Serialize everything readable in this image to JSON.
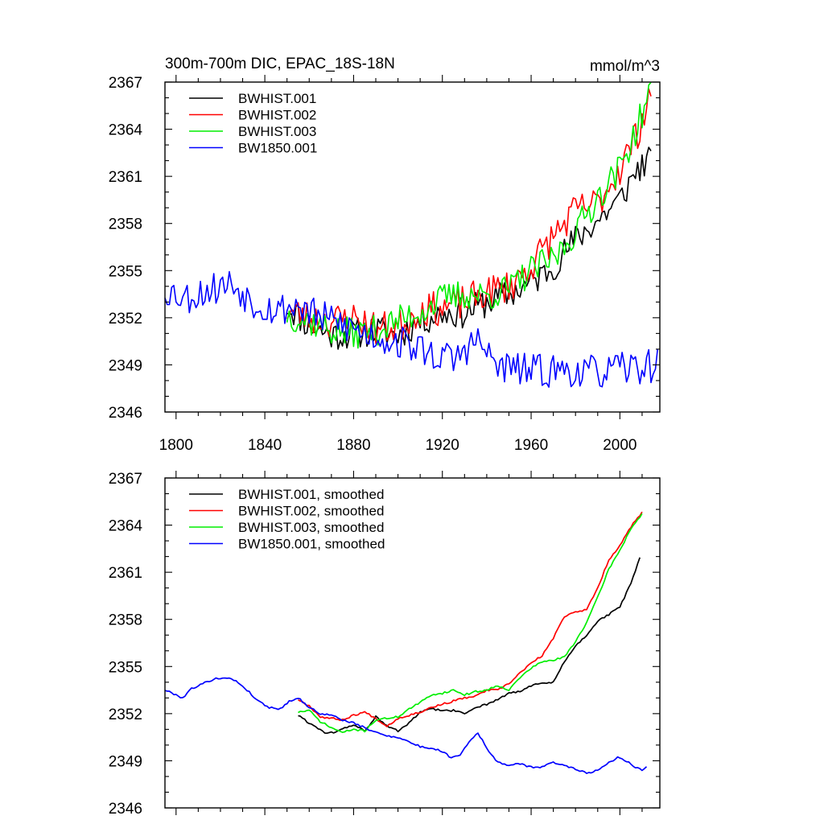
{
  "chart_data": [
    {
      "type": "line",
      "title": "300m-700m DIC, EPAC_18S-18N",
      "units": "mmol/m^3",
      "xlim": [
        1795,
        2018
      ],
      "ylim": [
        2346,
        2367
      ],
      "yticks": [
        2346,
        2349,
        2352,
        2355,
        2358,
        2361,
        2364,
        2367
      ],
      "xticks": [
        1800,
        1840,
        1880,
        1920,
        1960,
        2000
      ],
      "show_x_tick_labels": true,
      "legend_position": "top-left",
      "series": [
        {
          "name": "BWHIST.001",
          "color": "#000000",
          "x_start": 1850,
          "x_end": 2014,
          "anchors": [
            [
              1850,
              2352.8
            ],
            [
              1860,
              2351.5
            ],
            [
              1870,
              2350.9
            ],
            [
              1880,
              2351.0
            ],
            [
              1890,
              2351.2
            ],
            [
              1900,
              2350.9
            ],
            [
              1910,
              2351.8
            ],
            [
              1920,
              2352.3
            ],
            [
              1930,
              2352.3
            ],
            [
              1940,
              2353.0
            ],
            [
              1950,
              2353.5
            ],
            [
              1960,
              2354.2
            ],
            [
              1970,
              2355.3
            ],
            [
              1980,
              2357.0
            ],
            [
              1990,
              2358.2
            ],
            [
              2000,
              2359.5
            ],
            [
              2008,
              2361.5
            ],
            [
              2014,
              2362.0
            ]
          ],
          "noise": 1.0,
          "seed": 11
        },
        {
          "name": "BWHIST.002",
          "color": "#ff0000",
          "x_start": 1850,
          "x_end": 2014,
          "anchors": [
            [
              1850,
              2352.5
            ],
            [
              1860,
              2352.0
            ],
            [
              1870,
              2351.8
            ],
            [
              1880,
              2352.0
            ],
            [
              1890,
              2351.3
            ],
            [
              1900,
              2351.4
            ],
            [
              1910,
              2352.5
            ],
            [
              1920,
              2352.6
            ],
            [
              1930,
              2353.0
            ],
            [
              1940,
              2353.6
            ],
            [
              1950,
              2354.0
            ],
            [
              1960,
              2355.3
            ],
            [
              1970,
              2357.2
            ],
            [
              1980,
              2358.8
            ],
            [
              1990,
              2359.3
            ],
            [
              2000,
              2361.5
            ],
            [
              2008,
              2363.8
            ],
            [
              2014,
              2366.5
            ]
          ],
          "noise": 1.1,
          "seed": 23
        },
        {
          "name": "BWHIST.003",
          "color": "#00ee00",
          "x_start": 1850,
          "x_end": 2014,
          "anchors": [
            [
              1850,
              2352.2
            ],
            [
              1860,
              2351.8
            ],
            [
              1870,
              2351.2
            ],
            [
              1880,
              2351.0
            ],
            [
              1890,
              2351.2
            ],
            [
              1900,
              2351.8
            ],
            [
              1910,
              2352.4
            ],
            [
              1920,
              2353.2
            ],
            [
              1930,
              2353.5
            ],
            [
              1940,
              2353.4
            ],
            [
              1950,
              2353.8
            ],
            [
              1960,
              2355.0
            ],
            [
              1970,
              2355.7
            ],
            [
              1980,
              2357.5
            ],
            [
              1990,
              2359.7
            ],
            [
              2000,
              2361.5
            ],
            [
              2008,
              2364.2
            ],
            [
              2014,
              2366.6
            ]
          ],
          "noise": 1.0,
          "seed": 37
        },
        {
          "name": "BW1850.001",
          "color": "#0000ff",
          "x_start": 1795,
          "x_end": 2017,
          "anchors": [
            [
              1795,
              2353.8
            ],
            [
              1805,
              2353.3
            ],
            [
              1815,
              2353.8
            ],
            [
              1825,
              2354.2
            ],
            [
              1835,
              2353.0
            ],
            [
              1845,
              2352.5
            ],
            [
              1855,
              2352.8
            ],
            [
              1865,
              2352.0
            ],
            [
              1875,
              2351.6
            ],
            [
              1885,
              2351.0
            ],
            [
              1895,
              2350.6
            ],
            [
              1905,
              2350.3
            ],
            [
              1915,
              2349.7
            ],
            [
              1925,
              2349.3
            ],
            [
              1935,
              2350.6
            ],
            [
              1945,
              2348.9
            ],
            [
              1955,
              2348.7
            ],
            [
              1965,
              2348.6
            ],
            [
              1975,
              2348.7
            ],
            [
              1985,
              2348.5
            ],
            [
              1995,
              2348.6
            ],
            [
              2005,
              2348.8
            ],
            [
              2017,
              2349.0
            ]
          ],
          "noise": 1.1,
          "seed": 53
        }
      ]
    },
    {
      "type": "line",
      "title": "",
      "units": "",
      "xlim": [
        1795,
        2018
      ],
      "ylim": [
        2346,
        2367
      ],
      "yticks": [
        2346,
        2349,
        2352,
        2355,
        2358,
        2361,
        2364,
        2367
      ],
      "xticks": [
        1800,
        1840,
        1880,
        1920,
        1960,
        2000
      ],
      "show_x_tick_labels": false,
      "legend_position": "top-left",
      "series": [
        {
          "name": "BWHIST.001, smoothed",
          "color": "#000000",
          "x_start": 1855,
          "x_end": 2009,
          "anchors": [
            [
              1855,
              2351.9
            ],
            [
              1860,
              2351.4
            ],
            [
              1865,
              2351.0
            ],
            [
              1868,
              2350.7
            ],
            [
              1873,
              2350.9
            ],
            [
              1880,
              2351.3
            ],
            [
              1885,
              2350.9
            ],
            [
              1890,
              2351.8
            ],
            [
              1895,
              2351.2
            ],
            [
              1900,
              2350.9
            ],
            [
              1905,
              2351.4
            ],
            [
              1910,
              2352.1
            ],
            [
              1915,
              2352.3
            ],
            [
              1920,
              2352.2
            ],
            [
              1925,
              2352.2
            ],
            [
              1930,
              2352.0
            ],
            [
              1935,
              2352.4
            ],
            [
              1940,
              2352.6
            ],
            [
              1945,
              2352.9
            ],
            [
              1950,
              2353.3
            ],
            [
              1955,
              2353.4
            ],
            [
              1960,
              2353.8
            ],
            [
              1965,
              2353.9
            ],
            [
              1970,
              2354.0
            ],
            [
              1975,
              2355.3
            ],
            [
              1980,
              2356.3
            ],
            [
              1985,
              2357.0
            ],
            [
              1990,
              2357.9
            ],
            [
              1995,
              2358.3
            ],
            [
              2000,
              2358.8
            ],
            [
              2005,
              2360.3
            ],
            [
              2009,
              2361.9
            ]
          ],
          "noise": 0.06,
          "seed": 61
        },
        {
          "name": "BWHIST.002, smoothed",
          "color": "#ff0000",
          "x_start": 1855,
          "x_end": 2010,
          "anchors": [
            [
              1855,
              2352.9
            ],
            [
              1860,
              2352.5
            ],
            [
              1865,
              2351.8
            ],
            [
              1870,
              2351.7
            ],
            [
              1875,
              2351.6
            ],
            [
              1880,
              2351.9
            ],
            [
              1885,
              2352.1
            ],
            [
              1890,
              2351.7
            ],
            [
              1895,
              2351.2
            ],
            [
              1900,
              2351.7
            ],
            [
              1905,
              2351.9
            ],
            [
              1910,
              2352.1
            ],
            [
              1915,
              2352.4
            ],
            [
              1920,
              2352.6
            ],
            [
              1925,
              2352.8
            ],
            [
              1930,
              2353.0
            ],
            [
              1935,
              2353.1
            ],
            [
              1940,
              2353.5
            ],
            [
              1945,
              2353.5
            ],
            [
              1950,
              2353.9
            ],
            [
              1955,
              2354.6
            ],
            [
              1960,
              2355.2
            ],
            [
              1965,
              2355.7
            ],
            [
              1970,
              2356.8
            ],
            [
              1975,
              2358.2
            ],
            [
              1980,
              2358.5
            ],
            [
              1985,
              2358.6
            ],
            [
              1990,
              2360.0
            ],
            [
              1995,
              2361.8
            ],
            [
              2000,
              2362.7
            ],
            [
              2005,
              2363.9
            ],
            [
              2010,
              2364.8
            ]
          ],
          "noise": 0.06,
          "seed": 67
        },
        {
          "name": "BWHIST.003, smoothed",
          "color": "#00ee00",
          "x_start": 1855,
          "x_end": 2010,
          "anchors": [
            [
              1855,
              2352.1
            ],
            [
              1860,
              2352.2
            ],
            [
              1865,
              2351.5
            ],
            [
              1870,
              2351.1
            ],
            [
              1875,
              2350.8
            ],
            [
              1880,
              2351.0
            ],
            [
              1885,
              2350.9
            ],
            [
              1890,
              2351.6
            ],
            [
              1895,
              2351.7
            ],
            [
              1900,
              2351.8
            ],
            [
              1905,
              2352.3
            ],
            [
              1910,
              2352.7
            ],
            [
              1915,
              2353.2
            ],
            [
              1920,
              2353.3
            ],
            [
              1925,
              2353.5
            ],
            [
              1930,
              2353.2
            ],
            [
              1935,
              2353.4
            ],
            [
              1940,
              2353.5
            ],
            [
              1945,
              2353.8
            ],
            [
              1950,
              2353.5
            ],
            [
              1955,
              2354.3
            ],
            [
              1960,
              2354.9
            ],
            [
              1965,
              2355.3
            ],
            [
              1970,
              2355.4
            ],
            [
              1975,
              2355.6
            ],
            [
              1980,
              2356.6
            ],
            [
              1985,
              2357.8
            ],
            [
              1990,
              2359.4
            ],
            [
              1995,
              2361.2
            ],
            [
              2000,
              2362.4
            ],
            [
              2005,
              2363.8
            ],
            [
              2010,
              2364.7
            ]
          ],
          "noise": 0.06,
          "seed": 71
        },
        {
          "name": "BW1850.001, smoothed",
          "color": "#0000ff",
          "x_start": 1795,
          "x_end": 2012,
          "anchors": [
            [
              1795,
              2353.5
            ],
            [
              1800,
              2353.2
            ],
            [
              1803,
              2353.0
            ],
            [
              1807,
              2353.6
            ],
            [
              1812,
              2353.9
            ],
            [
              1817,
              2354.2
            ],
            [
              1822,
              2354.3
            ],
            [
              1827,
              2354.1
            ],
            [
              1832,
              2353.5
            ],
            [
              1837,
              2352.8
            ],
            [
              1842,
              2352.4
            ],
            [
              1847,
              2352.3
            ],
            [
              1851,
              2352.8
            ],
            [
              1855,
              2353.0
            ],
            [
              1860,
              2352.4
            ],
            [
              1865,
              2352.0
            ],
            [
              1870,
              2351.9
            ],
            [
              1875,
              2351.6
            ],
            [
              1880,
              2351.4
            ],
            [
              1885,
              2351.1
            ],
            [
              1890,
              2350.8
            ],
            [
              1895,
              2350.6
            ],
            [
              1900,
              2350.5
            ],
            [
              1905,
              2350.2
            ],
            [
              1910,
              2349.9
            ],
            [
              1915,
              2349.8
            ],
            [
              1920,
              2349.6
            ],
            [
              1924,
              2349.2
            ],
            [
              1928,
              2349.4
            ],
            [
              1932,
              2350.2
            ],
            [
              1936,
              2350.8
            ],
            [
              1940,
              2349.8
            ],
            [
              1944,
              2349.0
            ],
            [
              1950,
              2348.7
            ],
            [
              1955,
              2348.8
            ],
            [
              1960,
              2348.6
            ],
            [
              1965,
              2348.6
            ],
            [
              1970,
              2348.9
            ],
            [
              1975,
              2348.7
            ],
            [
              1980,
              2348.5
            ],
            [
              1985,
              2348.2
            ],
            [
              1990,
              2348.4
            ],
            [
              1995,
              2348.9
            ],
            [
              1999,
              2349.2
            ],
            [
              2003,
              2349.0
            ],
            [
              2007,
              2348.6
            ],
            [
              2010,
              2348.4
            ],
            [
              2012,
              2348.6
            ]
          ],
          "noise": 0.06,
          "seed": 79
        }
      ]
    }
  ]
}
